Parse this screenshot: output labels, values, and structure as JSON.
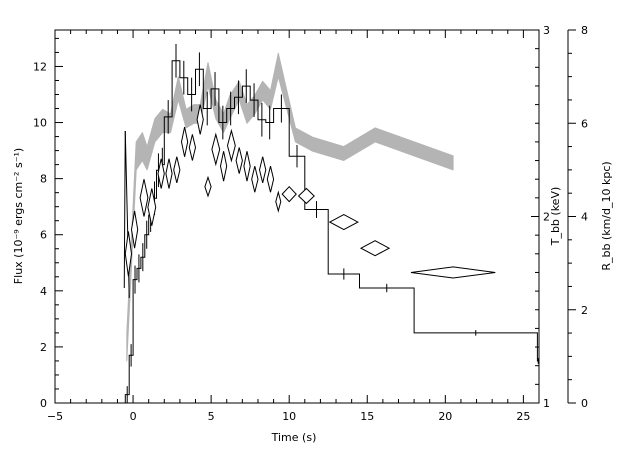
{
  "chart_data": {
    "type": "line",
    "title": "",
    "xlabel": "Time (s)",
    "ylabel": "Flux (10⁻⁹ ergs cm⁻² s⁻¹)",
    "y2label": "T_bb (keV)",
    "y3label": "R_bb (km/d_10 kpc)",
    "xlim": [
      -5,
      26
    ],
    "ylim": [
      0,
      13.3
    ],
    "y2lim": [
      1,
      3
    ],
    "y3lim": [
      0,
      8
    ],
    "grid": false,
    "xticks": [
      -5,
      0,
      5,
      10,
      15,
      20,
      25
    ],
    "xtick_labels": [
      "−5",
      "0",
      "5",
      "10",
      "15",
      "20",
      "25"
    ],
    "yticks": [
      0,
      2,
      4,
      6,
      8,
      10,
      12
    ],
    "ytick_labels": [
      "0",
      "2",
      "4",
      "6",
      "8",
      "10",
      "12"
    ],
    "y2ticks": [
      1,
      2,
      3
    ],
    "y2tick_labels": [
      "1",
      "2",
      "3"
    ],
    "y3ticks": [
      0,
      2,
      4,
      6,
      8
    ],
    "y3tick_labels": [
      "0",
      "2",
      "4",
      "6",
      "8"
    ],
    "series": [
      {
        "kind": "flux-histogram",
        "bins": [
          {
            "x0": -0.5,
            "x1": -0.25,
            "y": 0.3,
            "err": 0.3
          },
          {
            "x0": -0.25,
            "x1": 0.0,
            "y": 1.7,
            "err": 0.4
          },
          {
            "x0": 0.0,
            "x1": 0.25,
            "y": 4.4,
            "err": 0.5
          },
          {
            "x0": 0.25,
            "x1": 0.5,
            "y": 4.8,
            "err": 0.5
          },
          {
            "x0": 0.5,
            "x1": 0.75,
            "y": 5.2,
            "err": 0.5
          },
          {
            "x0": 0.75,
            "x1": 1.0,
            "y": 6.0,
            "err": 0.5
          },
          {
            "x0": 1.0,
            "x1": 1.25,
            "y": 6.7,
            "err": 0.6
          },
          {
            "x0": 1.25,
            "x1": 1.5,
            "y": 7.3,
            "err": 0.6
          },
          {
            "x0": 1.5,
            "x1": 1.75,
            "y": 8.3,
            "err": 0.6
          },
          {
            "x0": 1.75,
            "x1": 2.0,
            "y": 8.5,
            "err": 0.6
          },
          {
            "x0": 2.0,
            "x1": 2.5,
            "y": 10.2,
            "err": 0.6
          },
          {
            "x0": 2.5,
            "x1": 3.0,
            "y": 12.2,
            "err": 0.6
          },
          {
            "x0": 3.0,
            "x1": 3.5,
            "y": 11.6,
            "err": 0.6
          },
          {
            "x0": 3.5,
            "x1": 4.0,
            "y": 11.0,
            "err": 0.6
          },
          {
            "x0": 4.0,
            "x1": 4.5,
            "y": 11.9,
            "err": 0.6
          },
          {
            "x0": 4.5,
            "x1": 5.0,
            "y": 10.5,
            "err": 0.6
          },
          {
            "x0": 5.0,
            "x1": 5.5,
            "y": 11.2,
            "err": 0.6
          },
          {
            "x0": 5.5,
            "x1": 6.0,
            "y": 10.0,
            "err": 0.6
          },
          {
            "x0": 6.0,
            "x1": 6.5,
            "y": 10.5,
            "err": 0.6
          },
          {
            "x0": 6.5,
            "x1": 7.0,
            "y": 10.9,
            "err": 0.6
          },
          {
            "x0": 7.0,
            "x1": 7.5,
            "y": 11.3,
            "err": 0.6
          },
          {
            "x0": 7.5,
            "x1": 8.0,
            "y": 10.8,
            "err": 0.6
          },
          {
            "x0": 8.0,
            "x1": 8.5,
            "y": 10.1,
            "err": 0.6
          },
          {
            "x0": 8.5,
            "x1": 9.0,
            "y": 10.0,
            "err": 0.6
          },
          {
            "x0": 9.0,
            "x1": 10.0,
            "y": 10.5,
            "err": 0.5
          },
          {
            "x0": 10.0,
            "x1": 11.0,
            "y": 8.8,
            "err": 0.4
          },
          {
            "x0": 11.0,
            "x1": 12.5,
            "y": 6.9,
            "err": 0.3
          },
          {
            "x0": 12.5,
            "x1": 14.5,
            "y": 4.6,
            "err": 0.2
          },
          {
            "x0": 14.5,
            "x1": 18.0,
            "y": 4.1,
            "err": 0.15
          },
          {
            "x0": 18.0,
            "x1": 25.9,
            "y": 2.5,
            "err": 0.1
          },
          {
            "x0": 25.9,
            "x1": 26.0,
            "y": 1.5,
            "err": 0.1
          }
        ],
        "spike": {
          "x": -0.5,
          "top": 9.7,
          "bottom": 4.1
        }
      },
      {
        "kind": "temperature-diamonds",
        "axis": "T_bb (keV)",
        "points": [
          {
            "x": -0.3,
            "y": 1.8,
            "xerr": 0.2,
            "yerr": 0.12
          },
          {
            "x": 0.1,
            "y": 1.93,
            "xerr": 0.2,
            "yerr": 0.1
          },
          {
            "x": 0.7,
            "y": 2.1,
            "xerr": 0.25,
            "yerr": 0.1
          },
          {
            "x": 1.2,
            "y": 2.05,
            "xerr": 0.25,
            "yerr": 0.1
          },
          {
            "x": 1.8,
            "y": 2.23,
            "xerr": 0.2,
            "yerr": 0.08
          },
          {
            "x": 2.3,
            "y": 2.23,
            "xerr": 0.2,
            "yerr": 0.08
          },
          {
            "x": 2.8,
            "y": 2.25,
            "xerr": 0.2,
            "yerr": 0.07
          },
          {
            "x": 3.3,
            "y": 2.4,
            "xerr": 0.2,
            "yerr": 0.08
          },
          {
            "x": 3.8,
            "y": 2.37,
            "xerr": 0.2,
            "yerr": 0.07
          },
          {
            "x": 4.3,
            "y": 2.52,
            "xerr": 0.2,
            "yerr": 0.08
          },
          {
            "x": 4.8,
            "y": 2.16,
            "xerr": 0.2,
            "yerr": 0.05
          },
          {
            "x": 5.3,
            "y": 2.36,
            "xerr": 0.25,
            "yerr": 0.08
          },
          {
            "x": 5.8,
            "y": 2.27,
            "xerr": 0.2,
            "yerr": 0.08
          },
          {
            "x": 6.3,
            "y": 2.38,
            "xerr": 0.25,
            "yerr": 0.08
          },
          {
            "x": 6.8,
            "y": 2.3,
            "xerr": 0.2,
            "yerr": 0.07
          },
          {
            "x": 7.3,
            "y": 2.27,
            "xerr": 0.2,
            "yerr": 0.08
          },
          {
            "x": 7.8,
            "y": 2.2,
            "xerr": 0.2,
            "yerr": 0.07
          },
          {
            "x": 8.3,
            "y": 2.25,
            "xerr": 0.2,
            "yerr": 0.07
          },
          {
            "x": 8.8,
            "y": 2.2,
            "xerr": 0.2,
            "yerr": 0.07
          },
          {
            "x": 9.3,
            "y": 2.08,
            "xerr": 0.15,
            "yerr": 0.05
          },
          {
            "x": 10.0,
            "y": 2.12,
            "xerr": 0.45,
            "yerr": 0.04
          },
          {
            "x": 11.1,
            "y": 2.11,
            "xerr": 0.5,
            "yerr": 0.04
          },
          {
            "x": 13.5,
            "y": 1.97,
            "xerr": 0.9,
            "yerr": 0.04
          },
          {
            "x": 15.5,
            "y": 1.83,
            "xerr": 0.9,
            "yerr": 0.04
          },
          {
            "x": 20.5,
            "y": 1.7,
            "xerr": 2.7,
            "yerr": 0.03
          }
        ]
      },
      {
        "kind": "radius-band",
        "axis": "R_bb (km/d_10 kpc)",
        "color": "#b4b4b4",
        "points": [
          {
            "x": -0.4,
            "lo": 0.9,
            "hi": 1.5
          },
          {
            "x": 0.2,
            "lo": 5.0,
            "hi": 5.6
          },
          {
            "x": 0.6,
            "lo": 5.2,
            "hi": 5.8
          },
          {
            "x": 0.9,
            "lo": 5.0,
            "hi": 5.5
          },
          {
            "x": 1.4,
            "lo": 5.6,
            "hi": 6.1
          },
          {
            "x": 1.9,
            "lo": 5.8,
            "hi": 6.3
          },
          {
            "x": 2.4,
            "lo": 5.8,
            "hi": 6.2
          },
          {
            "x": 2.9,
            "lo": 6.5,
            "hi": 7.0
          },
          {
            "x": 3.4,
            "lo": 5.9,
            "hi": 6.3
          },
          {
            "x": 3.9,
            "lo": 6.0,
            "hi": 6.4
          },
          {
            "x": 4.3,
            "lo": 6.0,
            "hi": 6.4
          },
          {
            "x": 4.8,
            "lo": 6.8,
            "hi": 7.3
          },
          {
            "x": 5.3,
            "lo": 6.1,
            "hi": 6.5
          },
          {
            "x": 5.8,
            "lo": 5.8,
            "hi": 6.2
          },
          {
            "x": 6.2,
            "lo": 6.1,
            "hi": 6.6
          },
          {
            "x": 6.8,
            "lo": 6.5,
            "hi": 6.9
          },
          {
            "x": 7.3,
            "lo": 6.0,
            "hi": 6.4
          },
          {
            "x": 7.8,
            "lo": 6.2,
            "hi": 6.6
          },
          {
            "x": 8.3,
            "lo": 6.5,
            "hi": 6.9
          },
          {
            "x": 8.8,
            "lo": 6.3,
            "hi": 6.7
          },
          {
            "x": 9.3,
            "lo": 7.0,
            "hi": 7.5
          },
          {
            "x": 10.4,
            "lo": 5.6,
            "hi": 5.9
          },
          {
            "x": 11.5,
            "lo": 5.4,
            "hi": 5.7
          },
          {
            "x": 13.5,
            "lo": 5.2,
            "hi": 5.5
          },
          {
            "x": 15.5,
            "lo": 5.6,
            "hi": 5.9
          },
          {
            "x": 18.0,
            "lo": 5.3,
            "hi": 5.6
          },
          {
            "x": 20.5,
            "lo": 5.0,
            "hi": 5.3
          }
        ]
      }
    ]
  }
}
